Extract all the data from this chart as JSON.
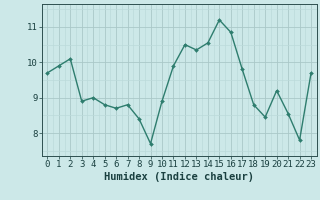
{
  "x": [
    0,
    1,
    2,
    3,
    4,
    5,
    6,
    7,
    8,
    9,
    10,
    11,
    12,
    13,
    14,
    15,
    16,
    17,
    18,
    19,
    20,
    21,
    22,
    23
  ],
  "y": [
    9.7,
    9.9,
    10.1,
    8.9,
    9.0,
    8.8,
    8.7,
    8.8,
    8.4,
    7.7,
    8.9,
    9.9,
    10.5,
    10.35,
    10.55,
    11.2,
    10.85,
    9.8,
    8.8,
    8.45,
    9.2,
    8.55,
    7.8,
    9.7
  ],
  "line_color": "#2e7d6e",
  "marker": "D",
  "marker_size": 2.0,
  "bg_color": "#cce8e8",
  "grid_color_major": "#aac8c8",
  "grid_color_minor": "#bbdada",
  "xlabel": "Humidex (Indice chaleur)",
  "xlabel_color": "#1a4040",
  "xlabel_fontsize": 7.5,
  "yticks": [
    8,
    9,
    10,
    11
  ],
  "xticks": [
    0,
    1,
    2,
    3,
    4,
    5,
    6,
    7,
    8,
    9,
    10,
    11,
    12,
    13,
    14,
    15,
    16,
    17,
    18,
    19,
    20,
    21,
    22,
    23
  ],
  "ylim": [
    7.35,
    11.65
  ],
  "xlim": [
    -0.5,
    23.5
  ],
  "tick_color": "#1a4040",
  "tick_fontsize": 6.5,
  "axis_color": "#2e5050",
  "linewidth": 1.0
}
